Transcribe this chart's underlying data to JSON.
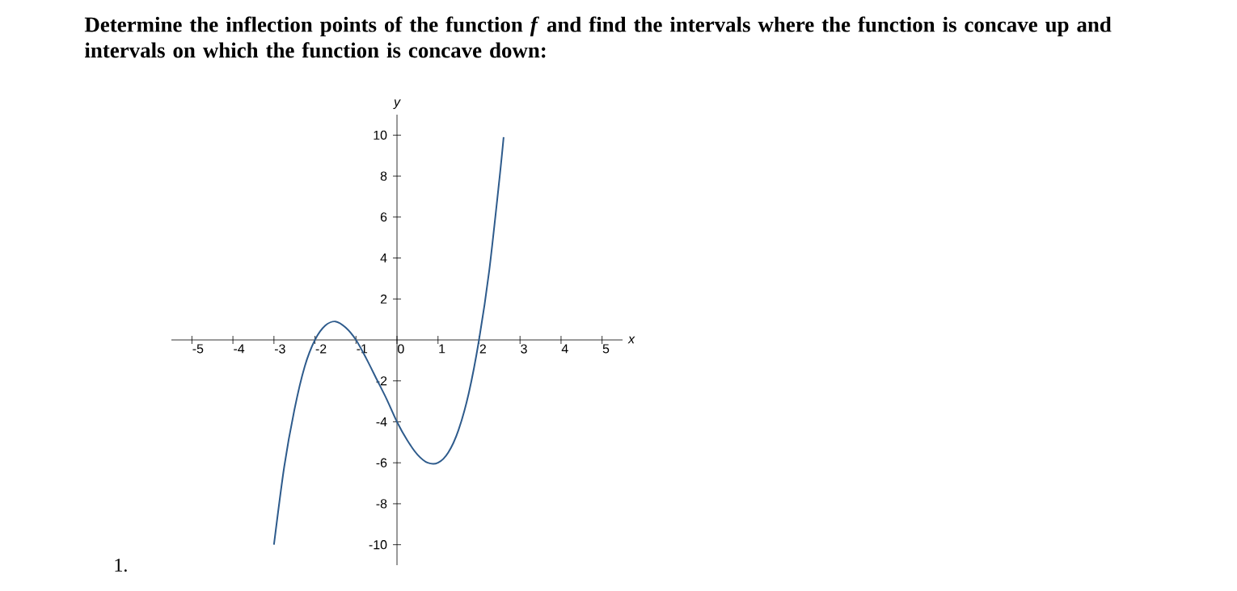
{
  "chart_data": {
    "type": "line",
    "title": "Determine the inflection points of the function *f* and find the intervals where the function is concave up and intervals on which the function is concave down:",
    "xlabel": "x",
    "ylabel": "y",
    "x": [
      -3,
      -2.75,
      -2.5,
      -2.25,
      -2,
      -1.75,
      -1.5,
      -1.25,
      -1,
      -0.75,
      -0.5,
      -0.25,
      0,
      0.25,
      0.5,
      0.75,
      1,
      1.25,
      1.5,
      1.75,
      2,
      2.25,
      2.5,
      2.6
    ],
    "series": [
      {
        "color": "#2e5b8c",
        "values": [
          -10,
          -6.2,
          -3.4,
          -1.3,
          0,
          0.7,
          0.9,
          0.6,
          0,
          -0.9,
          -1.9,
          -2.9,
          -4,
          -4.9,
          -5.6,
          -6,
          -6,
          -5.5,
          -4.4,
          -2.6,
          0,
          3.4,
          7.9,
          9.9
        ]
      }
    ],
    "xlim": [
      -5.5,
      5.5
    ],
    "ylim": [
      -11,
      11
    ],
    "xticks": [
      -5,
      -4,
      -3,
      -2,
      -1,
      0,
      1,
      2,
      3,
      4,
      5
    ],
    "yticks": [
      -10,
      -8,
      -6,
      -4,
      -2,
      2,
      4,
      6,
      8,
      10
    ],
    "grid": false,
    "marker": "none",
    "line_style": "solid",
    "annotations": [
      "1."
    ]
  }
}
